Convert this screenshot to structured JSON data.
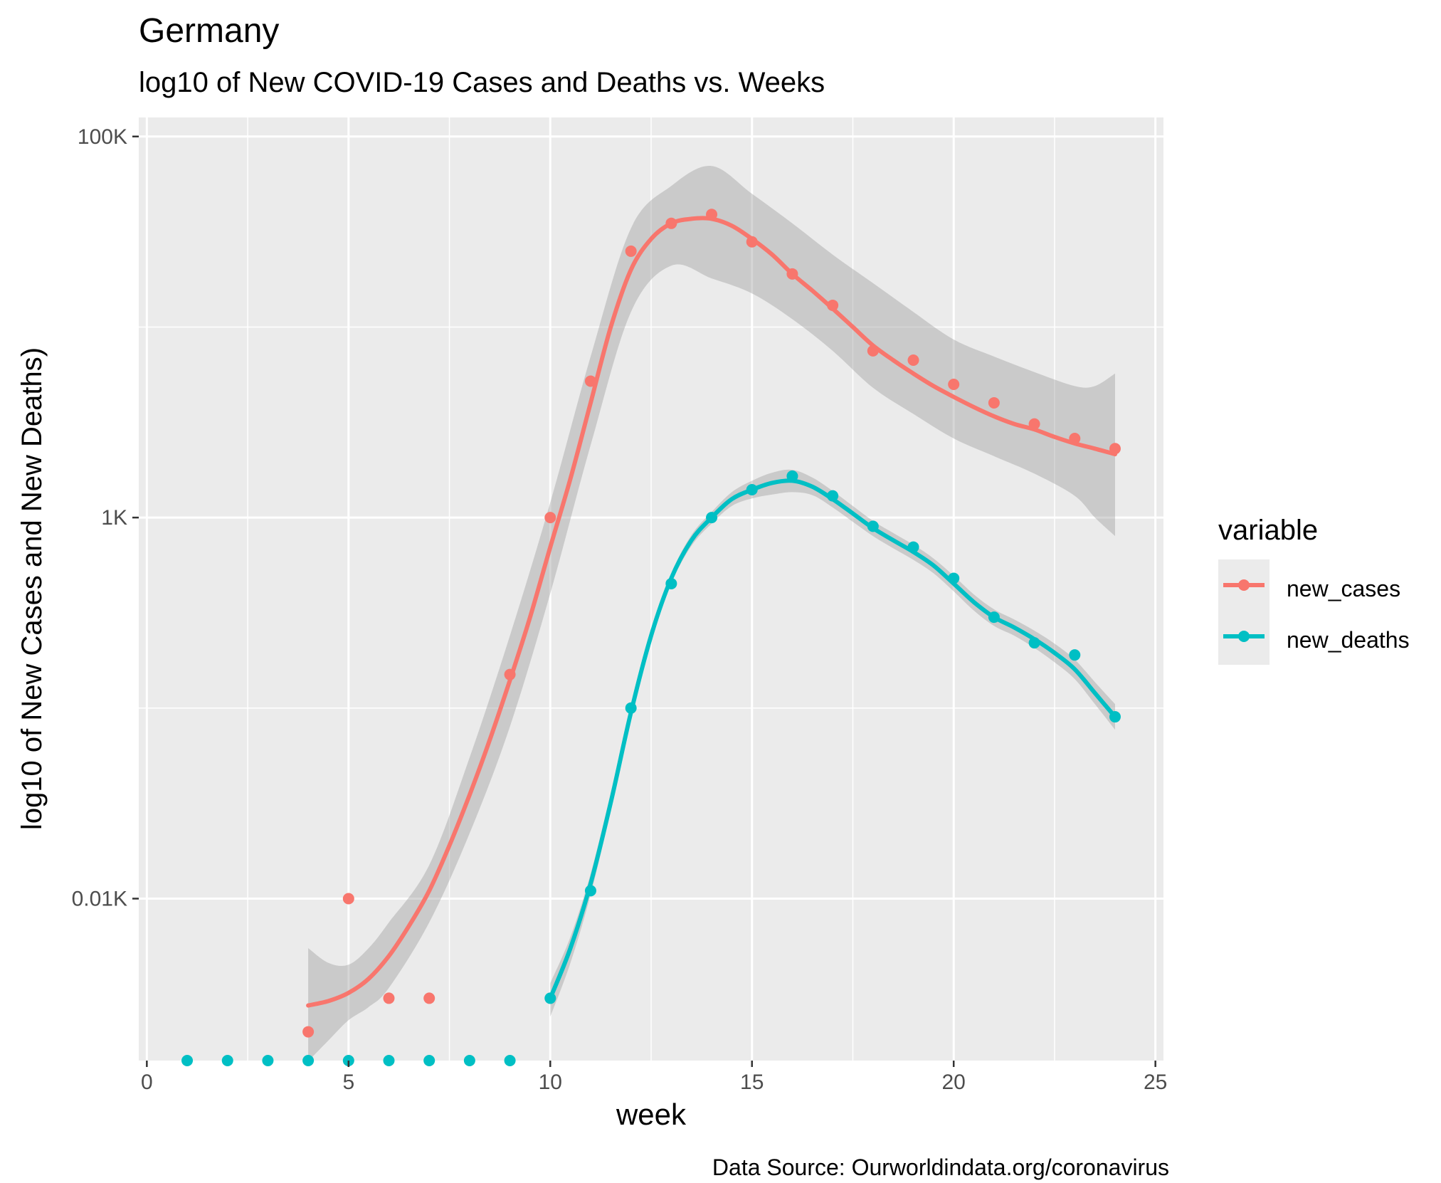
{
  "chart_data": {
    "type": "scatter",
    "title": "Germany",
    "subtitle": "log10 of New COVID-19 Cases and Deaths vs. Weeks",
    "xlabel": "week",
    "ylabel": "log10 of New Cases and New Deaths)",
    "caption": "Data Source: Ourworldindata.org/coronavirus",
    "y_scale": "log10",
    "xlim": [
      -0.2,
      25.2
    ],
    "ylim_log10": [
      0.15,
      5.1
    ],
    "x_ticks": [
      0,
      5,
      10,
      15,
      20,
      25
    ],
    "x_tick_labels": [
      "0",
      "5",
      "10",
      "15",
      "20",
      "25"
    ],
    "y_ticks_log10": [
      1,
      3,
      5
    ],
    "y_tick_labels": [
      "0.01K",
      "1K",
      "100K"
    ],
    "grid": true,
    "panel_background": "#ebebeb",
    "legend": {
      "title": "variable",
      "position": "right",
      "entries": [
        "new_cases",
        "new_deaths"
      ]
    },
    "series": [
      {
        "name": "new_cases",
        "color": "#F8766D",
        "points": [
          [
            4,
            2
          ],
          [
            5,
            10
          ],
          [
            6,
            3
          ],
          [
            7,
            3
          ],
          [
            9,
            150
          ],
          [
            10,
            1000
          ],
          [
            11,
            5200
          ],
          [
            12,
            25000
          ],
          [
            13,
            35000
          ],
          [
            14,
            39000
          ],
          [
            15,
            28000
          ],
          [
            16,
            19000
          ],
          [
            17,
            13000
          ],
          [
            18,
            7500
          ],
          [
            19,
            6700
          ],
          [
            20,
            5000
          ],
          [
            21,
            4000
          ],
          [
            22,
            3100
          ],
          [
            23,
            2600
          ],
          [
            24,
            2300
          ]
        ],
        "trend": [
          [
            4,
            2.75
          ],
          [
            4.5,
            2.9
          ],
          [
            5,
            3.2
          ],
          [
            5.5,
            3.8
          ],
          [
            6,
            5.0
          ],
          [
            6.5,
            7.2
          ],
          [
            7,
            11
          ],
          [
            7.5,
            19
          ],
          [
            8,
            35
          ],
          [
            8.5,
            68
          ],
          [
            9,
            140
          ],
          [
            9.5,
            300
          ],
          [
            10,
            700
          ],
          [
            10.5,
            1600
          ],
          [
            11,
            4000
          ],
          [
            11.5,
            10000
          ],
          [
            12,
            20000
          ],
          [
            12.5,
            29000
          ],
          [
            13,
            35000
          ],
          [
            13.5,
            37000
          ],
          [
            14,
            37000
          ],
          [
            14.5,
            34000
          ],
          [
            15,
            29000
          ],
          [
            15.5,
            24000
          ],
          [
            16,
            19000
          ],
          [
            16.5,
            15500
          ],
          [
            17,
            12500
          ],
          [
            17.5,
            10000
          ],
          [
            18,
            8000
          ],
          [
            18.5,
            6700
          ],
          [
            19,
            5700
          ],
          [
            19.5,
            4900
          ],
          [
            20,
            4300
          ],
          [
            20.5,
            3800
          ],
          [
            21,
            3400
          ],
          [
            21.5,
            3100
          ],
          [
            22,
            2900
          ],
          [
            22.5,
            2650
          ],
          [
            23,
            2450
          ],
          [
            23.5,
            2300
          ],
          [
            24,
            2150
          ]
        ],
        "band": [
          [
            4,
            5.5,
            1.4
          ],
          [
            4.5,
            4.6,
            1.8
          ],
          [
            5,
            4.5,
            2.3
          ],
          [
            5.5,
            5.5,
            2.7
          ],
          [
            6,
            7.5,
            3.4
          ],
          [
            7,
            15,
            7.5
          ],
          [
            8,
            55,
            22
          ],
          [
            9,
            240,
            80
          ],
          [
            10,
            1200,
            400
          ],
          [
            11,
            7000,
            2400
          ],
          [
            12,
            33000,
            12000
          ],
          [
            13,
            55000,
            21000
          ],
          [
            14,
            70000,
            18000
          ],
          [
            15,
            50000,
            15000
          ],
          [
            16,
            35000,
            11000
          ],
          [
            17,
            24000,
            7500
          ],
          [
            18,
            17000,
            4800
          ],
          [
            19,
            12000,
            3500
          ],
          [
            20,
            8600,
            2600
          ],
          [
            21,
            7000,
            2100
          ],
          [
            22,
            5800,
            1700
          ],
          [
            23,
            4900,
            1300
          ],
          [
            23.5,
            4900,
            1000
          ],
          [
            24,
            5700,
            800
          ]
        ]
      },
      {
        "name": "new_deaths",
        "color": "#00BFC4",
        "points": [
          [
            1,
            0.9
          ],
          [
            2,
            0.9
          ],
          [
            3,
            0.9
          ],
          [
            4,
            0.9
          ],
          [
            5,
            0.9
          ],
          [
            6,
            0.9
          ],
          [
            7,
            0.9
          ],
          [
            8,
            0.9
          ],
          [
            9,
            0.9
          ],
          [
            10,
            3
          ],
          [
            11,
            11
          ],
          [
            12,
            100
          ],
          [
            13,
            450
          ],
          [
            14,
            1000
          ],
          [
            15,
            1400
          ],
          [
            16,
            1650
          ],
          [
            17,
            1300
          ],
          [
            18,
            900
          ],
          [
            19,
            700
          ],
          [
            20,
            480
          ],
          [
            21,
            300
          ],
          [
            22,
            220
          ],
          [
            23,
            190
          ],
          [
            24,
            90
          ]
        ],
        "trend": [
          [
            10,
            3
          ],
          [
            10.5,
            5.5
          ],
          [
            11,
            12
          ],
          [
            11.5,
            32
          ],
          [
            12,
            95
          ],
          [
            12.5,
            240
          ],
          [
            13,
            480
          ],
          [
            13.5,
            760
          ],
          [
            14,
            1000
          ],
          [
            14.5,
            1250
          ],
          [
            15,
            1400
          ],
          [
            15.5,
            1520
          ],
          [
            16,
            1560
          ],
          [
            16.5,
            1450
          ],
          [
            17,
            1250
          ],
          [
            17.5,
            1050
          ],
          [
            18,
            880
          ],
          [
            18.5,
            760
          ],
          [
            19,
            660
          ],
          [
            19.5,
            560
          ],
          [
            20,
            450
          ],
          [
            20.5,
            360
          ],
          [
            21,
            300
          ],
          [
            21.5,
            265
          ],
          [
            22,
            230
          ],
          [
            22.5,
            195
          ],
          [
            23,
            160
          ],
          [
            23.5,
            120
          ],
          [
            24,
            90
          ]
        ],
        "band": [
          [
            10,
            3.6,
            2.4
          ],
          [
            10.5,
            6.3,
            4.6
          ],
          [
            11,
            13.5,
            10.5
          ],
          [
            11.5,
            36,
            29
          ],
          [
            12,
            105,
            86
          ],
          [
            12.5,
            260,
            220
          ],
          [
            13,
            510,
            450
          ],
          [
            13.5,
            810,
            710
          ],
          [
            14,
            1070,
            930
          ],
          [
            14.5,
            1360,
            1150
          ],
          [
            15,
            1560,
            1260
          ],
          [
            15.5,
            1720,
            1320
          ],
          [
            16,
            1780,
            1360
          ],
          [
            16.5,
            1620,
            1310
          ],
          [
            17,
            1380,
            1130
          ],
          [
            17.5,
            1150,
            950
          ],
          [
            18,
            960,
            800
          ],
          [
            18.5,
            830,
            690
          ],
          [
            19,
            720,
            600
          ],
          [
            19.5,
            610,
            510
          ],
          [
            20,
            495,
            410
          ],
          [
            20.5,
            395,
            325
          ],
          [
            21,
            330,
            270
          ],
          [
            21.5,
            292,
            240
          ],
          [
            22,
            255,
            207
          ],
          [
            22.5,
            218,
            174
          ],
          [
            23,
            180,
            142
          ],
          [
            23.5,
            137,
            105
          ],
          [
            24,
            105,
            77
          ]
        ]
      }
    ]
  }
}
